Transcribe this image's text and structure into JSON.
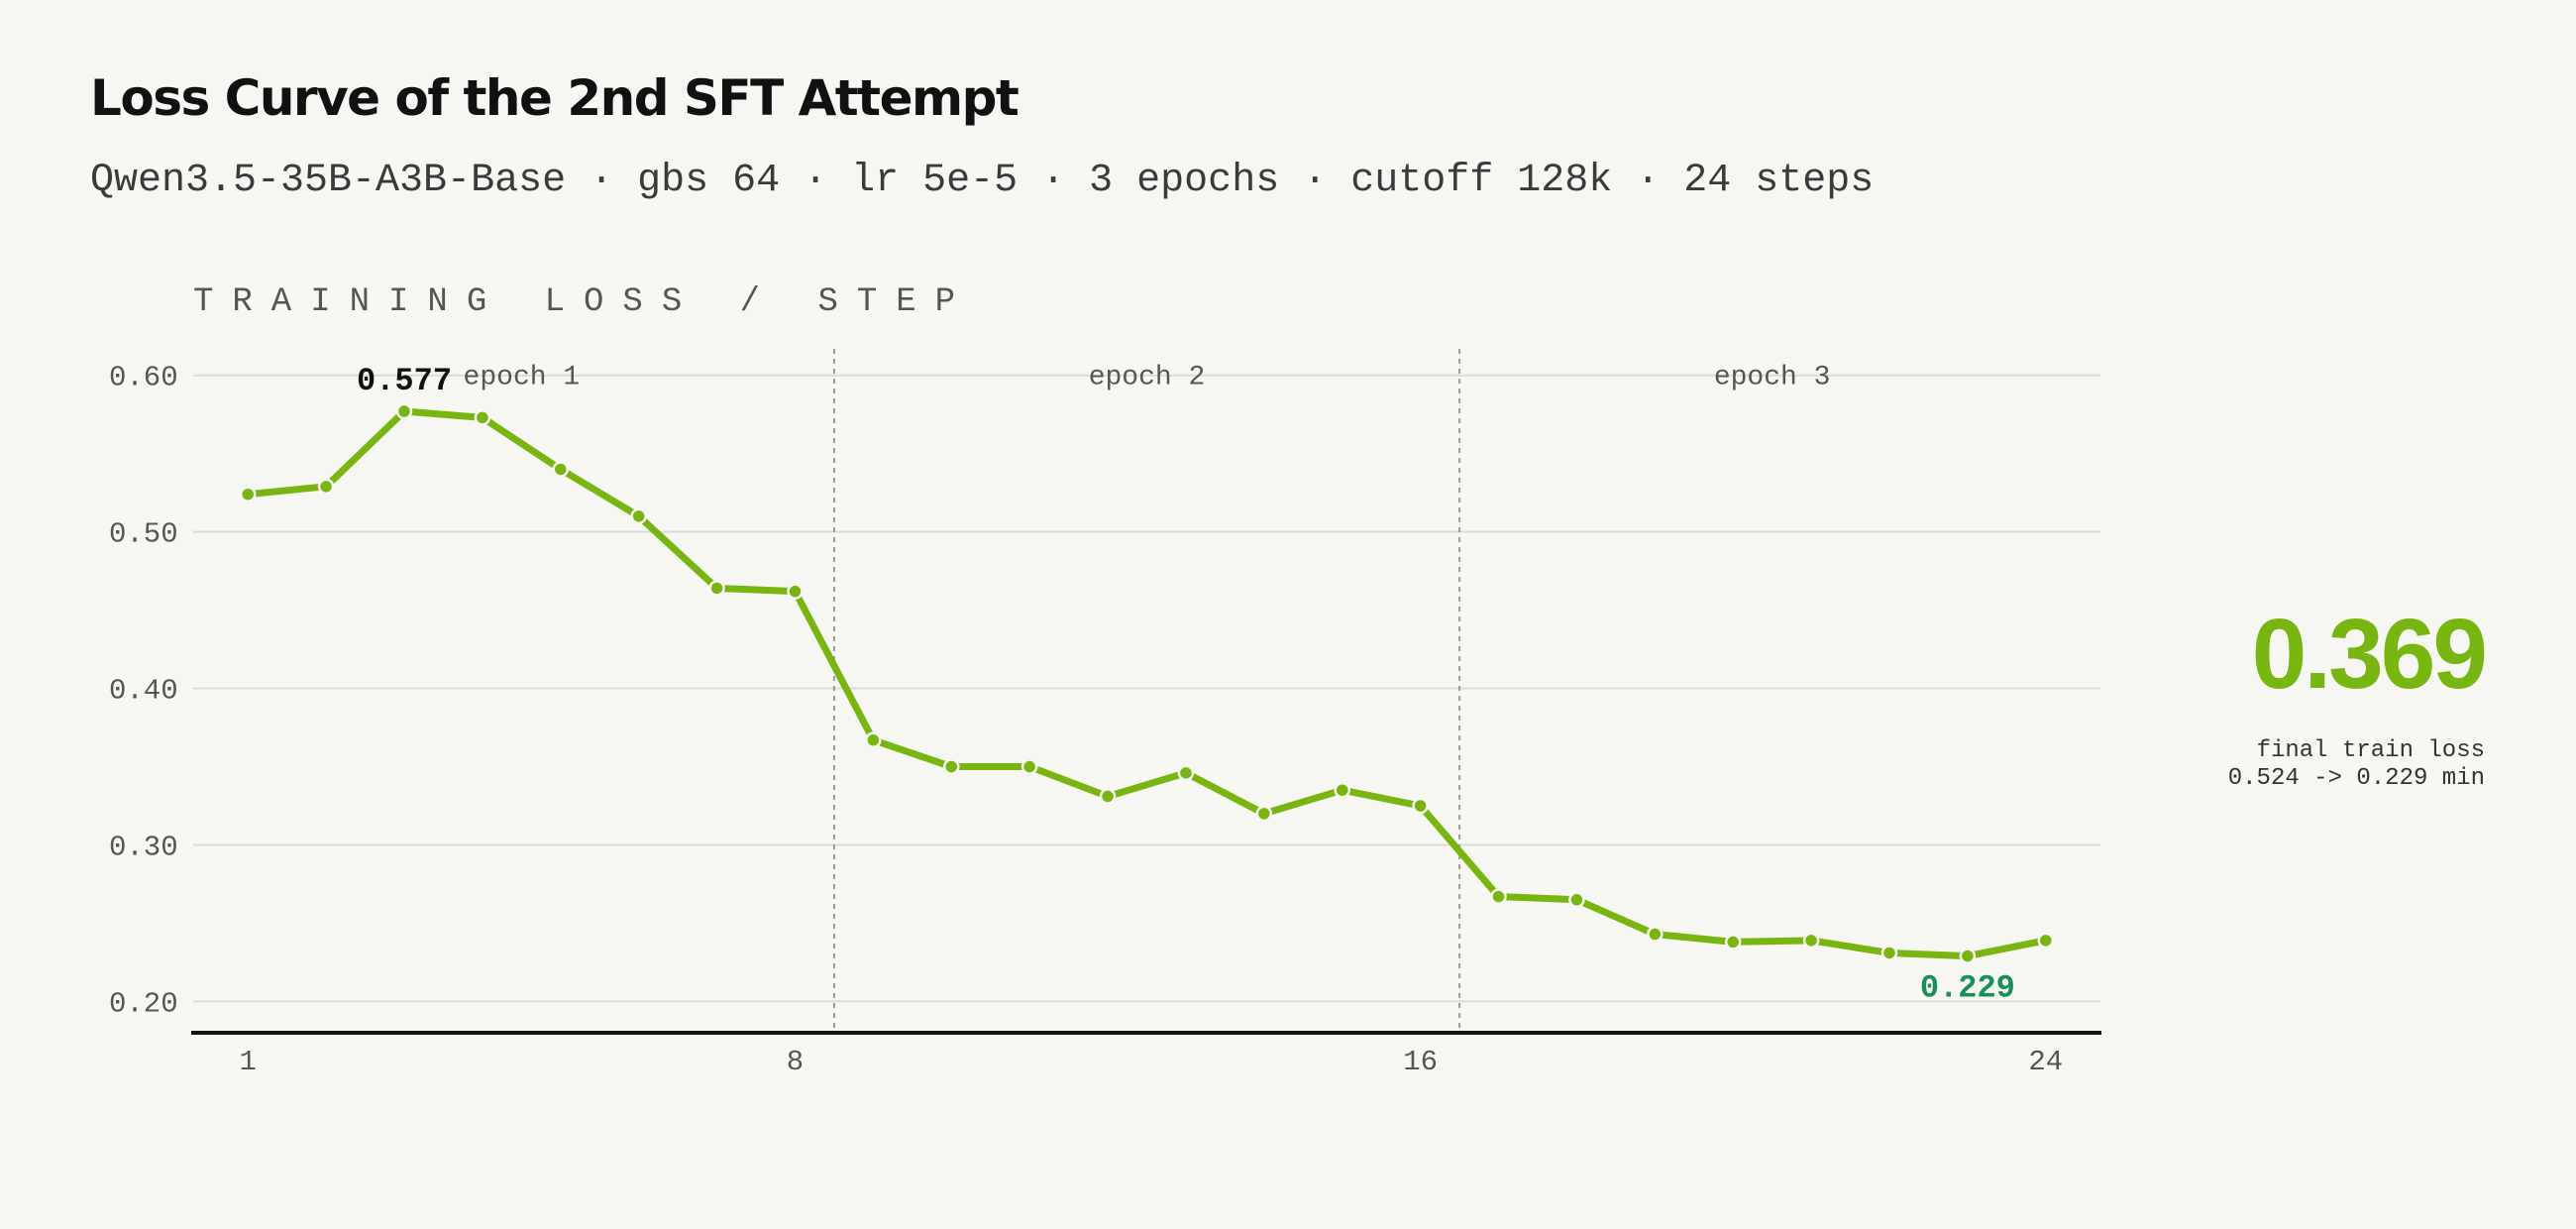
{
  "header": {
    "title": "Loss Curve of the 2nd SFT Attempt",
    "subtitle": "Qwen3.5-35B-A3B-Base · gbs 64 · lr 5e-5 · 3 epochs · cutoff 128k · 24 steps"
  },
  "chart_label": "TRAINING LOSS / STEP",
  "summary": {
    "value": "0.369",
    "caption": "final train loss",
    "detail": "0.524 -> 0.229 min"
  },
  "colors": {
    "background": "#f6f7f2",
    "line": "#79b511",
    "accent_value": "#79b511",
    "min_label": "#1a8f5a",
    "max_label": "#111111",
    "grid": "#dcdcd6",
    "axis": "#111111",
    "epoch_divider": "#999999"
  },
  "chart_data": {
    "type": "line",
    "title": "TRAINING LOSS / STEP",
    "xlabel": "",
    "ylabel": "",
    "x": [
      1,
      2,
      3,
      4,
      5,
      6,
      7,
      8,
      9,
      10,
      11,
      12,
      13,
      14,
      15,
      16,
      17,
      18,
      19,
      20,
      21,
      22,
      23,
      24
    ],
    "series": [
      {
        "values": [
          0.524,
          0.529,
          0.577,
          0.573,
          0.54,
          0.51,
          0.464,
          0.462,
          0.367,
          0.35,
          0.35,
          0.331,
          0.346,
          0.32,
          0.335,
          0.325,
          0.267,
          0.265,
          0.243,
          0.238,
          0.239,
          0.231,
          0.229,
          0.239
        ]
      }
    ],
    "ylim": [
      0.18,
      0.615
    ],
    "xlim": [
      0.3,
      24.7
    ],
    "yticks": [
      0.6,
      0.5,
      0.4,
      0.3,
      0.2
    ],
    "ytick_labels": [
      "0.60",
      "0.50",
      "0.40",
      "0.30",
      "0.20"
    ],
    "xticks": [
      1,
      8,
      16,
      24
    ],
    "xtick_labels": [
      "1",
      "8",
      "16",
      "24"
    ],
    "grid": true,
    "epoch_boundaries": [
      8.5,
      16.5
    ],
    "epochs": [
      {
        "label": "epoch 1",
        "center": 4.5
      },
      {
        "label": "epoch 2",
        "center": 12.5
      },
      {
        "label": "epoch 3",
        "center": 20.5
      }
    ],
    "annotations": [
      {
        "text": "0.577",
        "x": 3,
        "y": 0.577,
        "kind": "max"
      },
      {
        "text": "0.229",
        "x": 23,
        "y": 0.229,
        "kind": "min"
      }
    ]
  }
}
